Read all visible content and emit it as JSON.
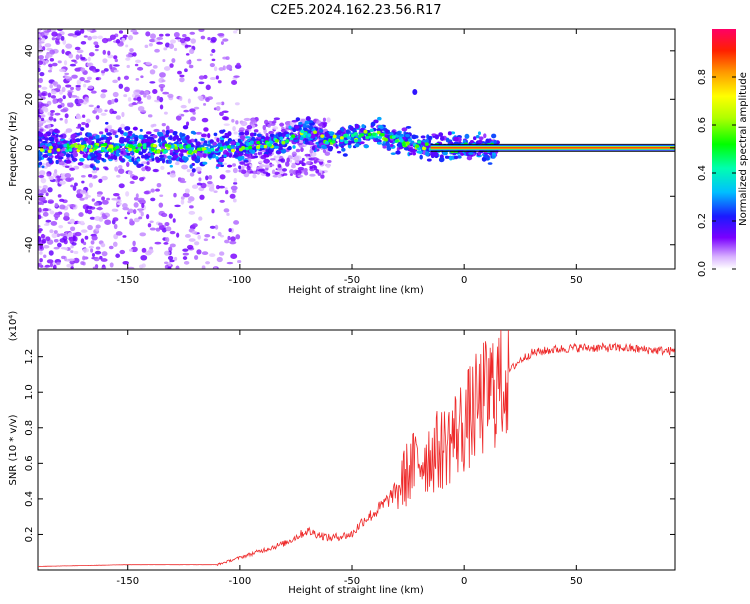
{
  "title": "C2E5.2024.162.23.56.R17",
  "colors": {
    "snr_line": "#ee2a2a",
    "axis": "#000000"
  },
  "chart_data": [
    {
      "type": "heatmap",
      "xlabel": "Height of straight line (km)",
      "ylabel": "Frequency (Hz)",
      "xlim": [
        -190,
        94
      ],
      "ylim": [
        -50,
        49
      ],
      "xticks": [
        -150,
        -100,
        -50,
        0,
        50
      ],
      "xtick_labels": [
        "-150",
        "-100",
        "-50",
        "0",
        "50"
      ],
      "yticks": [
        -40,
        -20,
        0,
        20,
        40
      ],
      "ytick_labels": [
        "-40",
        "-20",
        "0",
        "20",
        "40"
      ],
      "colorbar": {
        "label": "Normalized spectral amplitude",
        "range": [
          0,
          1
        ],
        "ticks": [
          0,
          0.2,
          0.4,
          0.6,
          0.8
        ],
        "tick_labels": [
          "0.0",
          "0.2",
          "0.4",
          "0.6",
          "0.8"
        ]
      },
      "ridge": [
        {
          "x": -190,
          "y": 0
        },
        {
          "x": -150,
          "y": 0
        },
        {
          "x": -110,
          "y": -1
        },
        {
          "x": -85,
          "y": 2
        },
        {
          "x": -70,
          "y": 6
        },
        {
          "x": -60,
          "y": 3
        },
        {
          "x": -50,
          "y": 4
        },
        {
          "x": -40,
          "y": 6
        },
        {
          "x": -30,
          "y": 3
        },
        {
          "x": -20,
          "y": 1
        },
        {
          "x": -10,
          "y": 0
        },
        {
          "x": 0,
          "y": 0
        },
        {
          "x": 94,
          "y": 0
        }
      ],
      "carrier_line": {
        "x_start": -15,
        "x_end": 94,
        "y": 0
      }
    },
    {
      "type": "line",
      "xlabel": "Height of straight line (km)",
      "ylabel": "SNR (10 * v/v)",
      "scale_label": "(x10⁴)",
      "xlim": [
        -190,
        94
      ],
      "ylim": [
        0,
        1.35
      ],
      "xticks": [
        -150,
        -100,
        -50,
        0,
        50
      ],
      "xtick_labels": [
        "-150",
        "-100",
        "-50",
        "0",
        "50"
      ],
      "yticks": [
        0.2,
        0.4,
        0.6,
        0.8,
        1.0,
        1.2
      ],
      "ytick_labels": [
        "0.2",
        "0.4",
        "0.6",
        "0.8",
        "1.0",
        "1.2"
      ],
      "series": [
        {
          "name": "SNR",
          "x": [
            -190,
            -150,
            -110,
            -100,
            -90,
            -80,
            -70,
            -60,
            -50,
            -45,
            -40,
            -35,
            -30,
            -25,
            -20,
            -15,
            -10,
            -5,
            0,
            5,
            10,
            15,
            20,
            25,
            30,
            40,
            50,
            60,
            70,
            80,
            94
          ],
          "y": [
            0.02,
            0.03,
            0.03,
            0.07,
            0.11,
            0.15,
            0.22,
            0.18,
            0.2,
            0.28,
            0.32,
            0.38,
            0.45,
            0.55,
            0.62,
            0.65,
            0.68,
            0.75,
            0.82,
            0.9,
            0.98,
            1.05,
            1.12,
            1.18,
            1.22,
            1.24,
            1.25,
            1.25,
            1.25,
            1.24,
            1.23
          ]
        }
      ]
    }
  ]
}
